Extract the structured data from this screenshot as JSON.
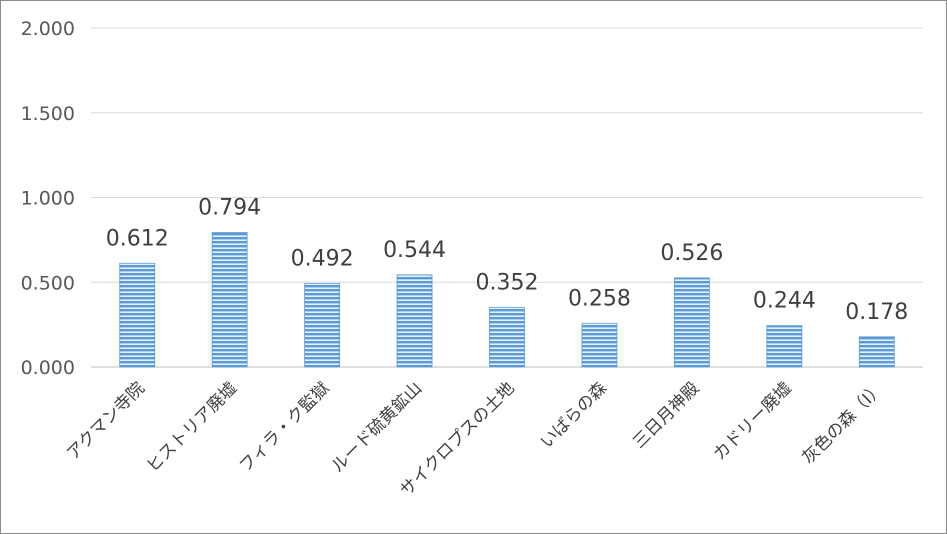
{
  "chart_data": {
    "type": "bar",
    "categories": [
      "アクマン寺院",
      "ヒストリア廃墟",
      "フィラ・ク監獄",
      "ルード硫黄鉱山",
      "サイクロプスの土地",
      "いばらの森",
      "三日月神殿",
      "カドリー廃墟",
      "灰色の森（I）"
    ],
    "values": [
      0.612,
      0.794,
      0.492,
      0.544,
      0.352,
      0.258,
      0.526,
      0.244,
      0.178
    ],
    "data_labels": [
      "0.612",
      "0.794",
      "0.492",
      "0.544",
      "0.352",
      "0.258",
      "0.526",
      "0.244",
      "0.178"
    ],
    "y_ticks": [
      0,
      0.5,
      1.0,
      1.5,
      2.0
    ],
    "y_tick_labels": [
      "0.000",
      "0.500",
      "1.000",
      "1.500",
      "2.000"
    ],
    "ylim": [
      0,
      2.0
    ],
    "grid": true,
    "legend": "none",
    "title": "",
    "xlabel": "",
    "ylabel": "",
    "colors": {
      "bar_fill": "#5b9bd5",
      "bar_stripe": "#ffffff",
      "grid": "#d9d9d9",
      "axis": "#bfbfbf"
    }
  }
}
